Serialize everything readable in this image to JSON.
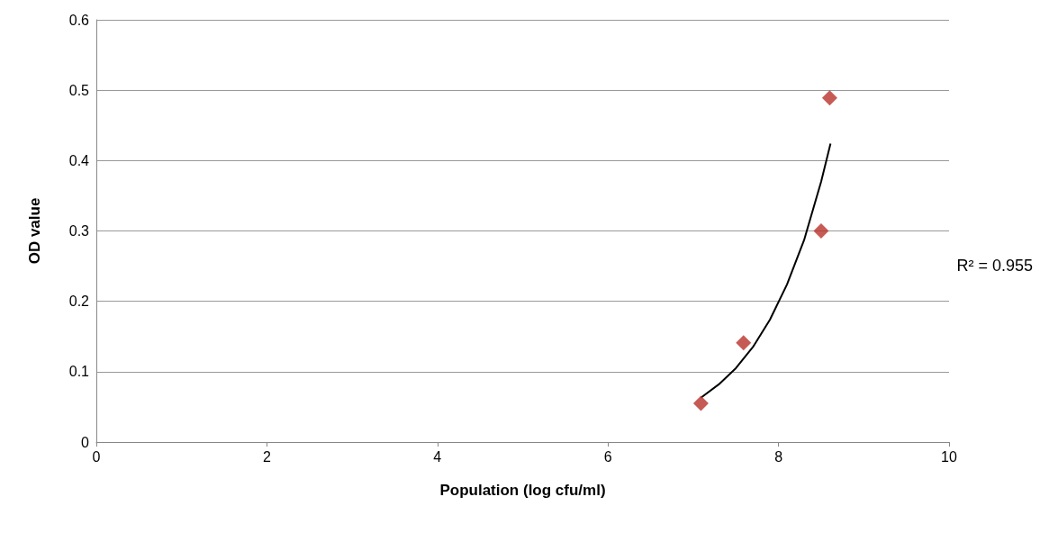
{
  "chart_data": {
    "type": "scatter",
    "xlabel": "Population (log cfu/ml)",
    "ylabel": "OD value",
    "xlim": [
      0,
      10
    ],
    "xticks": [
      0,
      2,
      4,
      6,
      8,
      10
    ],
    "ylim": [
      0,
      0.6
    ],
    "yticks": [
      0,
      0.1,
      0.2,
      0.3,
      0.4,
      0.5,
      0.6
    ],
    "grid": "y",
    "marker": "diamond",
    "series": [
      {
        "color": "#b8322a",
        "x": [
          7.09,
          7.59,
          8.5,
          8.6
        ],
        "values": [
          0.055,
          0.141,
          0.3,
          0.489
        ]
      },
      {
        "type": "line",
        "color": "#000000",
        "marker": "none",
        "x": [
          7.09,
          7.3,
          7.5,
          7.7,
          7.9,
          8.1,
          8.3,
          8.5,
          8.61
        ],
        "values": [
          0.063,
          0.082,
          0.105,
          0.135,
          0.174,
          0.224,
          0.287,
          0.37,
          0.424
        ]
      }
    ],
    "annotations": [
      "R² = 0.955"
    ]
  }
}
